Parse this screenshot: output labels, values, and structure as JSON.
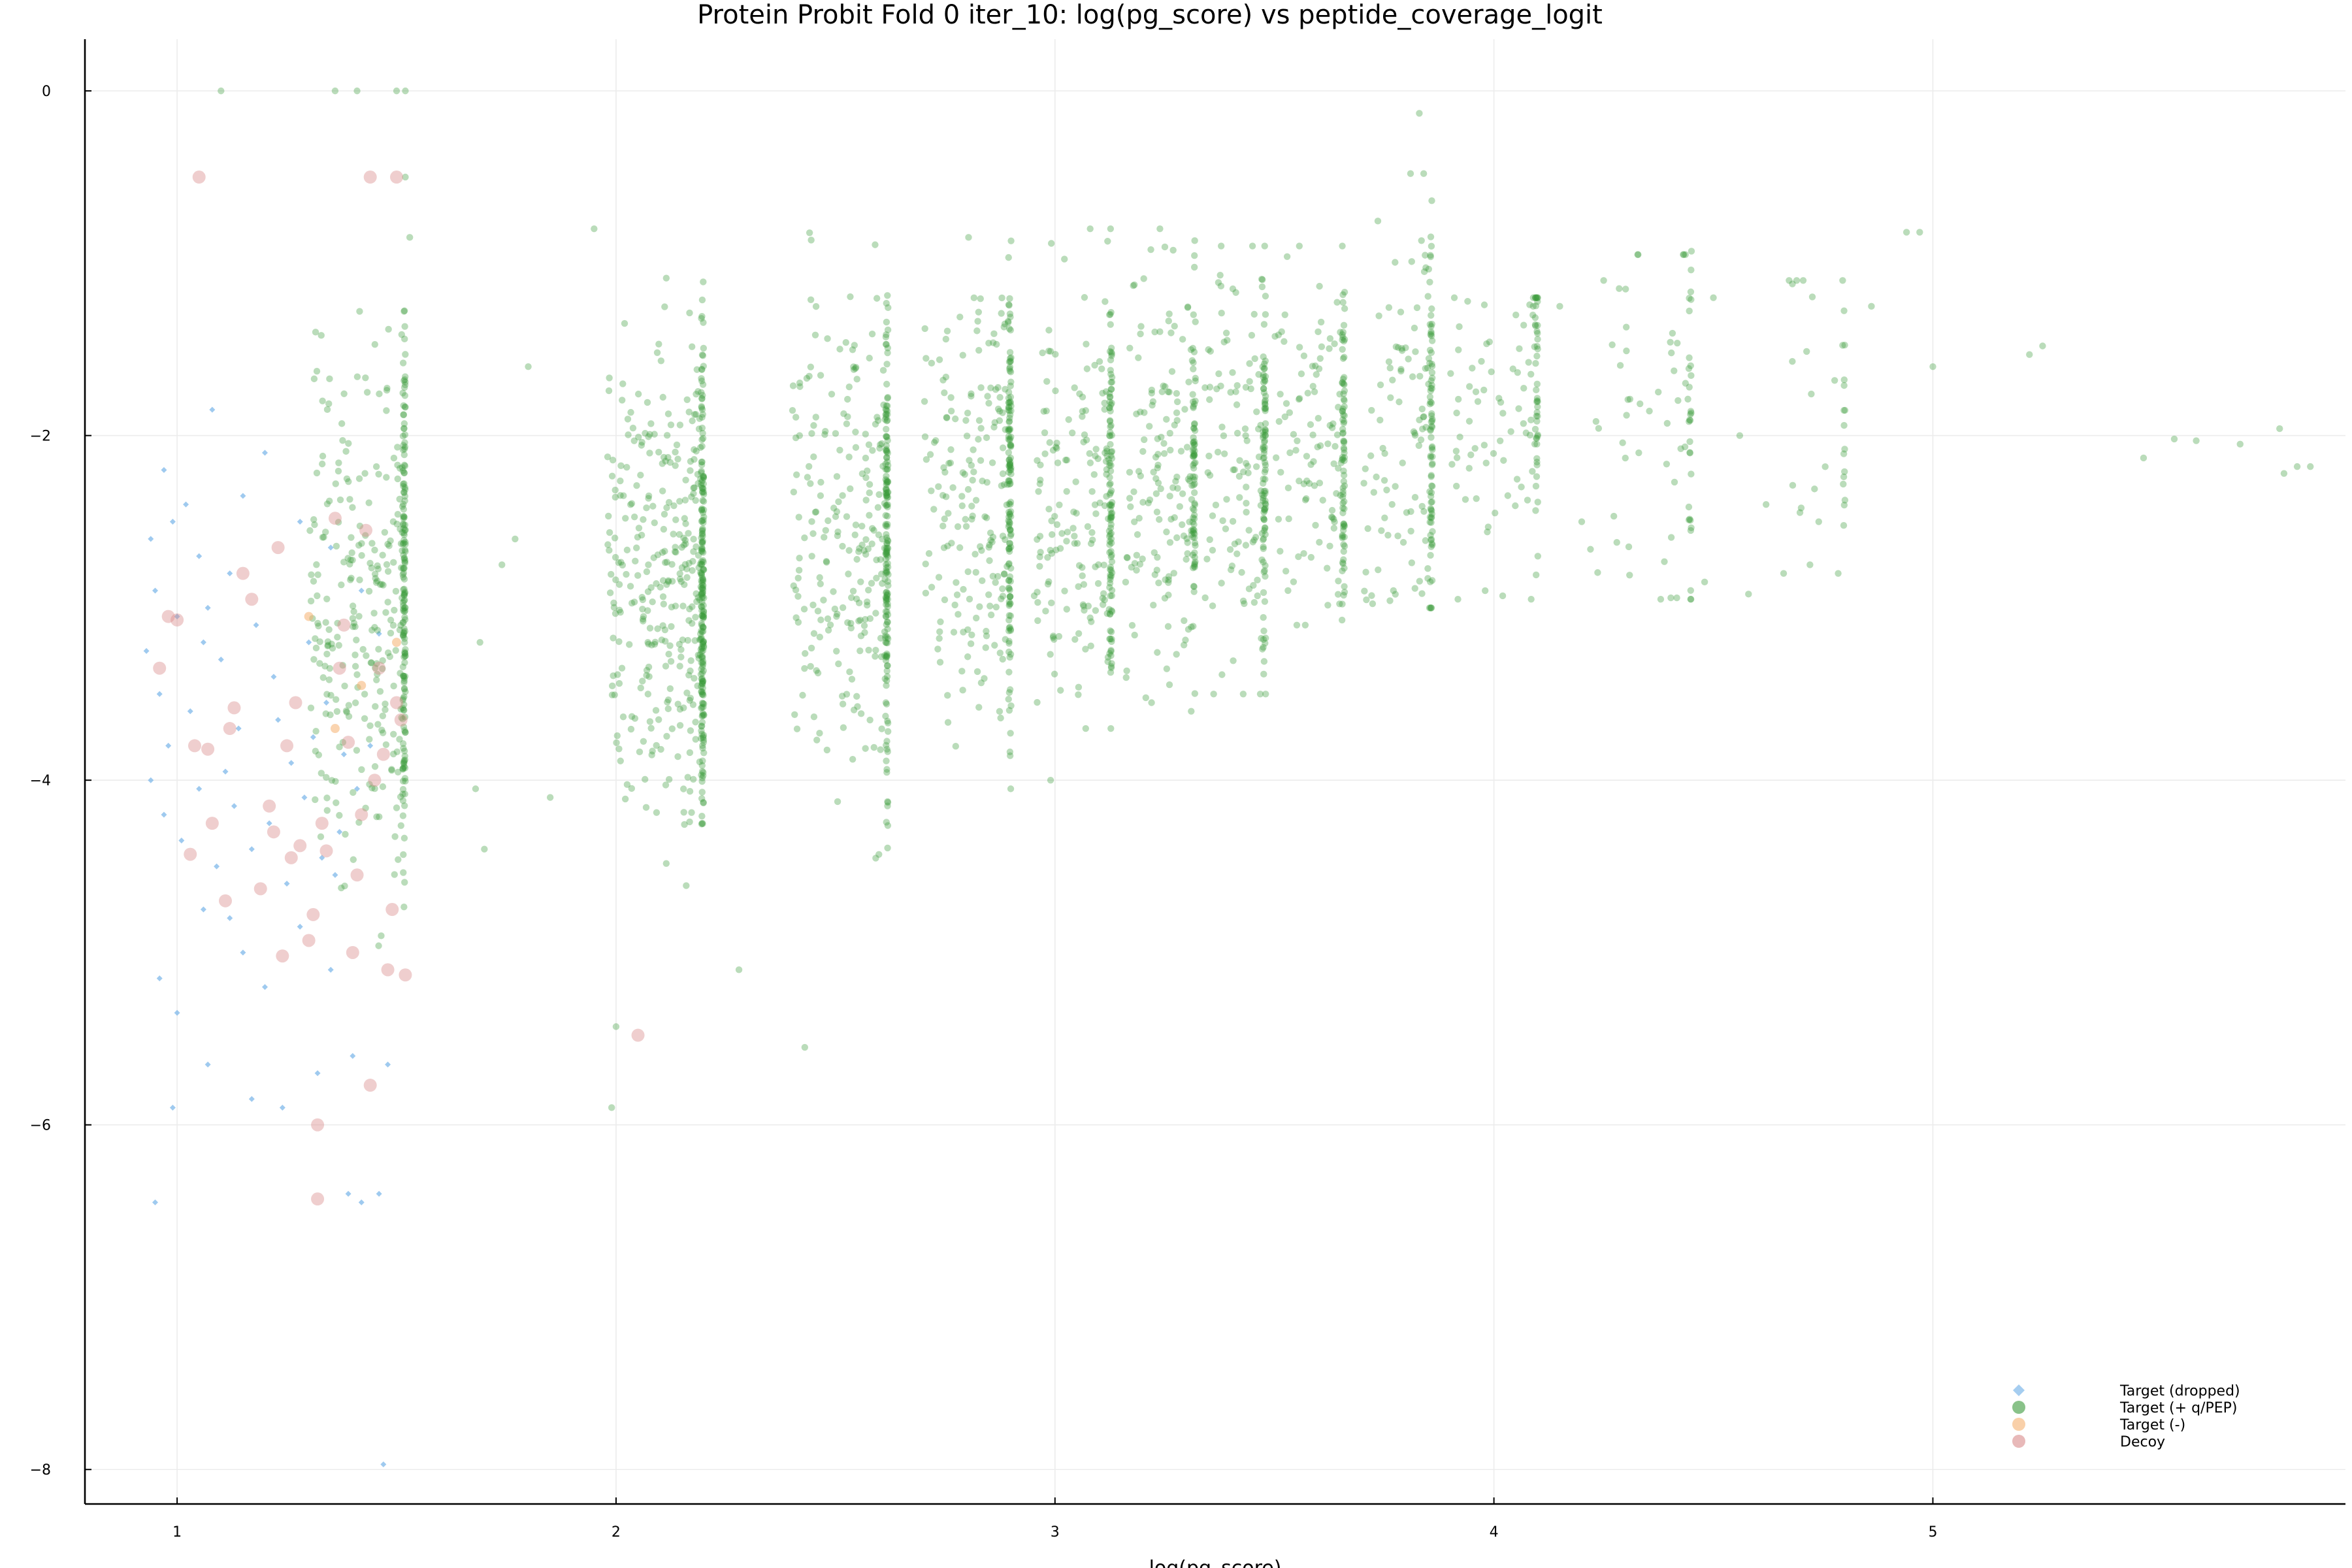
{
  "chart_data": {
    "type": "scatter",
    "title": "Protein Probit Fold 0 iter_10: log(pg_score) vs peptide_coverage_logit",
    "xlabel": "log(pg_score)",
    "ylabel": "",
    "xlim": [
      0.79,
      5.94
    ],
    "ylim": [
      -8.2,
      0.3
    ],
    "xticks": [
      1,
      2,
      3,
      4,
      5
    ],
    "yticks": [
      0,
      -2,
      -4,
      -6,
      -8
    ],
    "grid": true,
    "legend_position": "bottom-right",
    "series": [
      {
        "name": "Target (dropped)",
        "color": "#7fb8ea",
        "marker": "diamond",
        "points": [
          [
            0.94,
            -2.6
          ],
          [
            0.95,
            -2.9
          ],
          [
            0.97,
            -2.2
          ],
          [
            0.99,
            -2.5
          ],
          [
            1.02,
            -2.4
          ],
          [
            1.05,
            -2.7
          ],
          [
            1.08,
            -1.85
          ],
          [
            1.12,
            -2.8
          ],
          [
            0.93,
            -3.25
          ],
          [
            0.96,
            -3.5
          ],
          [
            1.0,
            -3.05
          ],
          [
            1.03,
            -3.6
          ],
          [
            1.07,
            -3.0
          ],
          [
            1.1,
            -3.3
          ],
          [
            1.14,
            -3.7
          ],
          [
            1.18,
            -3.1
          ],
          [
            1.22,
            -3.4
          ],
          [
            1.26,
            -3.9
          ],
          [
            1.3,
            -3.2
          ],
          [
            1.34,
            -3.55
          ],
          [
            1.38,
            -3.85
          ],
          [
            0.94,
            -4.0
          ],
          [
            0.97,
            -4.2
          ],
          [
            1.01,
            -4.35
          ],
          [
            1.05,
            -4.05
          ],
          [
            1.09,
            -4.5
          ],
          [
            1.13,
            -4.15
          ],
          [
            1.17,
            -4.4
          ],
          [
            1.21,
            -4.25
          ],
          [
            1.25,
            -4.6
          ],
          [
            1.29,
            -4.1
          ],
          [
            1.33,
            -4.45
          ],
          [
            1.37,
            -4.3
          ],
          [
            1.41,
            -4.05
          ],
          [
            0.96,
            -5.15
          ],
          [
            1.0,
            -5.35
          ],
          [
            1.06,
            -4.75
          ],
          [
            1.15,
            -5.0
          ],
          [
            1.2,
            -5.2
          ],
          [
            1.28,
            -4.85
          ],
          [
            1.35,
            -5.1
          ],
          [
            0.99,
            -5.9
          ],
          [
            1.07,
            -5.65
          ],
          [
            1.17,
            -5.85
          ],
          [
            1.24,
            -5.9
          ],
          [
            1.32,
            -5.7
          ],
          [
            1.4,
            -5.6
          ],
          [
            1.48,
            -5.65
          ],
          [
            0.95,
            -6.45
          ],
          [
            1.39,
            -6.4
          ],
          [
            1.42,
            -6.45
          ],
          [
            1.46,
            -6.4
          ],
          [
            1.47,
            -7.97
          ],
          [
            1.2,
            -2.1
          ],
          [
            1.15,
            -2.35
          ],
          [
            1.28,
            -2.5
          ],
          [
            1.35,
            -2.65
          ],
          [
            1.42,
            -2.9
          ],
          [
            1.46,
            -3.15
          ],
          [
            1.44,
            -3.8
          ],
          [
            1.12,
            -4.8
          ],
          [
            1.31,
            -3.75
          ],
          [
            1.36,
            -4.55
          ],
          [
            1.23,
            -3.65
          ],
          [
            0.98,
            -3.8
          ],
          [
            1.06,
            -3.2
          ],
          [
            1.11,
            -3.95
          ]
        ]
      },
      {
        "name": "Target (+ q/PEP)",
        "color": "#3a9a3a",
        "marker": "circle",
        "points": []
      },
      {
        "name": "Target (-)",
        "color": "#f5b070",
        "marker": "circle",
        "points": [
          [
            1.3,
            -3.05
          ],
          [
            1.42,
            -3.45
          ],
          [
            1.5,
            -3.2
          ],
          [
            1.36,
            -3.7
          ]
        ]
      },
      {
        "name": "Decoy",
        "color": "#d98a8a",
        "marker": "circle",
        "points": [
          [
            1.05,
            -0.5
          ],
          [
            1.44,
            -0.5
          ],
          [
            1.5,
            -0.5
          ],
          [
            0.96,
            -3.35
          ],
          [
            0.98,
            -3.05
          ],
          [
            1.0,
            -3.07
          ],
          [
            1.04,
            -3.8
          ],
          [
            1.07,
            -3.82
          ],
          [
            1.03,
            -4.43
          ],
          [
            1.08,
            -4.25
          ],
          [
            1.11,
            -4.7
          ],
          [
            1.13,
            -3.58
          ],
          [
            1.15,
            -2.8
          ],
          [
            1.17,
            -2.95
          ],
          [
            1.12,
            -3.7
          ],
          [
            1.19,
            -4.63
          ],
          [
            1.21,
            -4.15
          ],
          [
            1.23,
            -2.65
          ],
          [
            1.25,
            -3.8
          ],
          [
            1.26,
            -4.45
          ],
          [
            1.28,
            -4.38
          ],
          [
            1.24,
            -5.02
          ],
          [
            1.3,
            -4.93
          ],
          [
            1.31,
            -4.78
          ],
          [
            1.32,
            -6.0
          ],
          [
            1.32,
            -6.43
          ],
          [
            1.34,
            -4.41
          ],
          [
            1.36,
            -2.48
          ],
          [
            1.37,
            -3.35
          ],
          [
            1.38,
            -3.1
          ],
          [
            1.39,
            -3.78
          ],
          [
            1.4,
            -5.0
          ],
          [
            1.41,
            -4.55
          ],
          [
            1.42,
            -4.2
          ],
          [
            1.44,
            -5.77
          ],
          [
            1.45,
            -4.0
          ],
          [
            1.47,
            -3.85
          ],
          [
            1.48,
            -5.1
          ],
          [
            1.49,
            -4.75
          ],
          [
            1.5,
            -3.55
          ],
          [
            1.51,
            -3.65
          ],
          [
            1.52,
            -5.13
          ],
          [
            1.43,
            -2.55
          ],
          [
            1.27,
            -3.55
          ],
          [
            1.22,
            -4.3
          ],
          [
            1.33,
            -4.25
          ],
          [
            1.46,
            -3.35
          ],
          [
            2.05,
            -5.48
          ]
        ]
      }
    ],
    "main_series_note": ""
  }
}
